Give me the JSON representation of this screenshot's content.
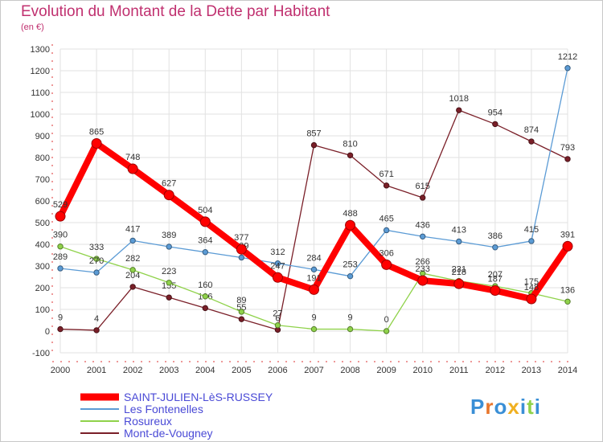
{
  "chart_data": {
    "type": "line",
    "title": "Evolution du Montant de la Dette par Habitant",
    "subtitle": "(en €)",
    "x": [
      2000,
      2001,
      2002,
      2003,
      2004,
      2005,
      2006,
      2007,
      2008,
      2009,
      2010,
      2011,
      2012,
      2013,
      2014
    ],
    "ylim": [
      -100,
      1300
    ],
    "yticks": [
      -100,
      0,
      100,
      200,
      300,
      400,
      500,
      600,
      700,
      800,
      900,
      1000,
      1100,
      1200,
      1300
    ],
    "grid": true,
    "legend_position": "bottom-left",
    "series": [
      {
        "name": "SAINT-JULIEN-LèS-RUSSEY",
        "color": "#ff0000",
        "values": [
          529,
          865,
          748,
          627,
          504,
          377,
          247,
          191,
          488,
          306,
          233,
          218,
          187,
          148,
          391
        ]
      },
      {
        "name": "Les Fontenelles",
        "color": "#5b9bd5",
        "values": [
          289,
          270,
          417,
          389,
          364,
          339,
          312,
          284,
          253,
          465,
          436,
          413,
          386,
          415,
          1212
        ]
      },
      {
        "name": "Rosureux",
        "color": "#8fd24a",
        "values": [
          390,
          333,
          282,
          223,
          160,
          89,
          27,
          9,
          9,
          0,
          266,
          231,
          207,
          175,
          136
        ]
      },
      {
        "name": "Mont-de-Vougney",
        "color": "#7a1f28",
        "values": [
          9,
          4,
          204,
          155,
          106,
          55,
          6,
          857,
          810,
          671,
          615,
          1018,
          954,
          874,
          793
        ]
      }
    ]
  },
  "logo": {
    "text": "Proxiti"
  }
}
